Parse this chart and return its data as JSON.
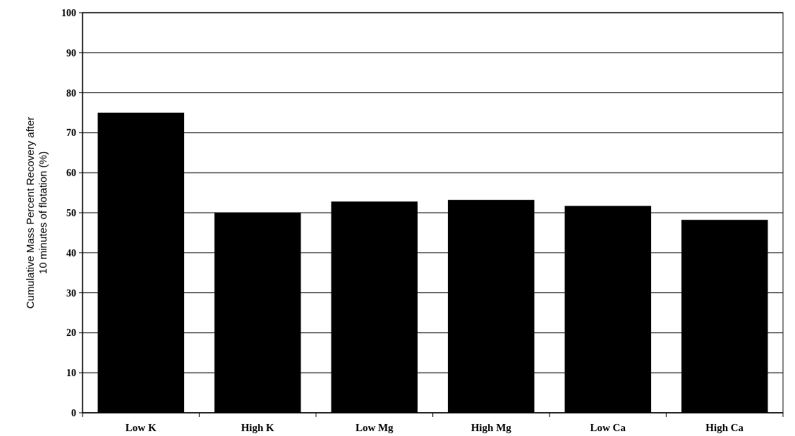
{
  "chart_data": {
    "type": "bar",
    "ylabel": "Cumulative Mass Percent Recovery after\n10 minutes of flotation (%)",
    "categories": [
      "Low K",
      "High K",
      "Low Mg",
      "High Mg",
      "Low Ca",
      "High Ca"
    ],
    "values": [
      75,
      50,
      52.8,
      53.2,
      51.7,
      48.2
    ],
    "color": "#000000",
    "ylim": [
      0,
      100
    ],
    "yticks": [
      0,
      10,
      20,
      30,
      40,
      50,
      60,
      70,
      80,
      90,
      100
    ],
    "grid": "y"
  }
}
